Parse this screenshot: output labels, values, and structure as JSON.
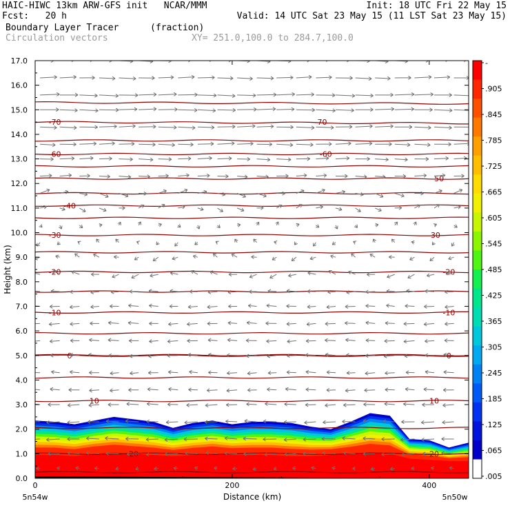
{
  "header": {
    "line1_left": "HAIC-HIWC 13km ARW-GFS init   NCAR/MMM",
    "line1_right": "Init: 18 UTC Fri 22 May 15",
    "line2_left": "Fcst:   20 h",
    "line2_right": "Valid: 14 UTC Sat 23 May 15 (11 LST Sat 23 May 15)",
    "field_name": "Boundary Layer Tracer",
    "field_units": "(fraction)",
    "overlay_name": "Circulation vectors",
    "cross_section": "XY= 251.0,100.0 to 284.7,100.0"
  },
  "colors": {
    "contour": "#8b0000",
    "vector": "#707070",
    "scale": [
      "#ffffff",
      "#0000c8",
      "#0014dc",
      "#0032f0",
      "#005af5",
      "#0082f5",
      "#00aaf0",
      "#00c8dc",
      "#00dcb4",
      "#00e68c",
      "#14f050",
      "#50f514",
      "#8cf500",
      "#c8f500",
      "#f0f000",
      "#ffdc00",
      "#ffbe00",
      "#ffa000",
      "#ff7800",
      "#ff5000",
      "#ff2800",
      "#ff0000"
    ]
  },
  "chart_data": {
    "type": "heatmap",
    "xlabel": "Distance (km)",
    "ylabel": "Height (km)",
    "xlim": [
      0,
      440
    ],
    "ylim": [
      0,
      17
    ],
    "x_ticks": [
      0,
      200,
      400
    ],
    "x_tick_labels": [
      "0",
      "200",
      "400"
    ],
    "y_ticks": [
      0,
      1,
      2,
      3,
      4,
      5,
      6,
      7,
      8,
      9,
      10,
      11,
      12,
      13,
      14,
      15,
      16,
      17
    ],
    "y_tick_labels": [
      "0.0",
      "1.0",
      "2.0",
      "3.0",
      "4.0",
      "5.0",
      "6.0",
      "7.0",
      "8.0",
      "9.0",
      "10.0",
      "11.0",
      "12.0",
      "13.0",
      "14.0",
      "15.0",
      "16.0",
      "17.0"
    ],
    "x_end_labels": [
      "5n54w",
      "5n50w"
    ],
    "colorbar_labels": [
      "-",
      ".905",
      ".845",
      ".785",
      ".725",
      ".665",
      ".605",
      ".545",
      ".485",
      ".425",
      ".365",
      ".305",
      ".245",
      ".185",
      ".125",
      ".065",
      ".005"
    ],
    "colorbar_levels": [
      0.005,
      0.065,
      0.125,
      0.185,
      0.245,
      0.305,
      0.365,
      0.425,
      0.485,
      0.545,
      0.605,
      0.665,
      0.725,
      0.785,
      0.845,
      0.905
    ],
    "tracer_top_km": {
      "x": [
        0,
        20,
        40,
        60,
        80,
        100,
        120,
        140,
        160,
        180,
        200,
        220,
        240,
        260,
        280,
        300,
        320,
        340,
        360,
        380,
        400,
        420,
        440
      ],
      "outer": [
        2.35,
        2.3,
        2.2,
        2.35,
        2.5,
        2.4,
        2.3,
        2.05,
        2.25,
        2.35,
        2.2,
        2.3,
        2.3,
        2.25,
        2.1,
        2.0,
        2.3,
        2.65,
        2.55,
        1.6,
        1.55,
        1.25,
        1.45
      ],
      "red_top": [
        0.95,
        0.95,
        0.9,
        1.0,
        1.05,
        1.0,
        0.95,
        0.9,
        0.95,
        1.0,
        0.95,
        0.95,
        0.95,
        0.9,
        0.9,
        0.95,
        1.0,
        1.05,
        1.0,
        0.8,
        0.75,
        0.7,
        0.7
      ]
    },
    "temperature_contours": [
      {
        "label": "20",
        "height_km": 1.0,
        "label_x_km": [
          100,
          405
        ]
      },
      {
        "label": "10",
        "height_km": 3.15,
        "label_x_km": [
          60,
          405
        ]
      },
      {
        "label": "0",
        "height_km": 5.0,
        "label_x_km": [
          35,
          420
        ]
      },
      {
        "label": "-10",
        "height_km": 6.75,
        "label_x_km": [
          20,
          420
        ]
      },
      {
        "label": "-20",
        "height_km": 8.4,
        "label_x_km": [
          20,
          420
        ]
      },
      {
        "label": "-30",
        "height_km": 9.9,
        "label_x_km": [
          20,
          405
        ]
      },
      {
        "label": "-40",
        "height_km": 11.1,
        "label_x_km": [
          35
        ]
      },
      {
        "label": "50",
        "height_km": 12.2,
        "label_x_km": [
          410
        ]
      },
      {
        "label": "-60",
        "height_km": 13.2,
        "label_x_km": [
          20,
          295
        ]
      },
      {
        "label": "-70",
        "height_km": 14.5,
        "label_x_km": [
          20,
          290
        ]
      }
    ],
    "isotherm_heights_km": [
      0.25,
      1.0,
      2.05,
      3.15,
      4.1,
      5.0,
      5.9,
      6.75,
      7.6,
      8.4,
      9.2,
      9.9,
      10.6,
      11.1,
      11.6,
      12.2,
      12.7,
      13.2,
      13.75,
      14.5,
      15.3
    ],
    "wind_vectors": {
      "description_levels_km": [
        17,
        16.3,
        15.6,
        15,
        14.3,
        13.6,
        13,
        12.3,
        11.6,
        11,
        10.3,
        9.6,
        9,
        8.3,
        7.6,
        7,
        6.3,
        5.6,
        5,
        4.3,
        3.6,
        3,
        2.3,
        1.6,
        1.0,
        0.4
      ],
      "u_component": [
        2.2,
        2.6,
        3.0,
        3.0,
        2.8,
        2.6,
        2.2,
        1.8,
        1.4,
        1.0,
        0.4,
        -0.4,
        -0.8,
        -1.2,
        -1.4,
        -1.5,
        -1.6,
        -1.6,
        -1.6,
        -1.5,
        -1.6,
        -1.8,
        -2.0,
        -2.1,
        -2.0,
        -0.6
      ]
    }
  }
}
